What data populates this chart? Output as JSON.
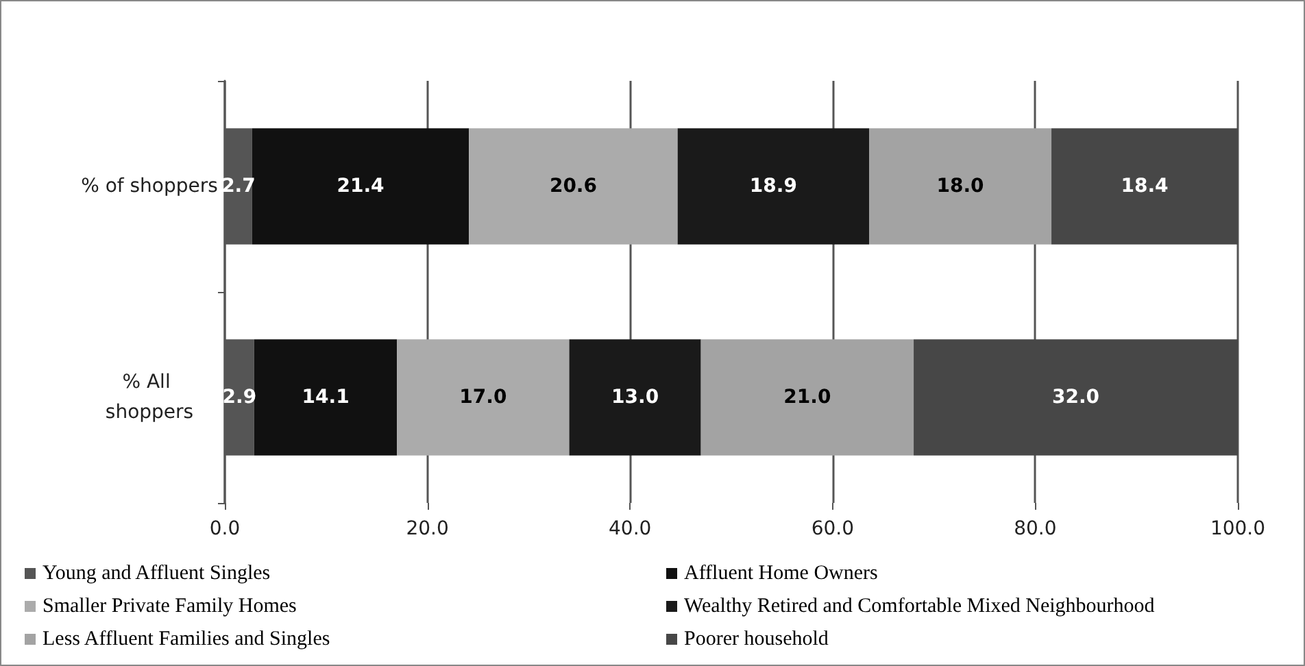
{
  "chart_data": {
    "type": "bar",
    "orientation": "horizontal",
    "stacked": true,
    "categories": [
      "% of shoppers",
      "% All shoppers"
    ],
    "series": [
      {
        "name": "Young and Affluent Singles",
        "color": "#555555",
        "values": [
          2.7,
          2.9
        ],
        "value_labels": [
          "2.7",
          "2.9"
        ]
      },
      {
        "name": "Affluent Home Owners",
        "color": "#111111",
        "values": [
          21.4,
          14.1
        ],
        "value_labels": [
          "21.4",
          "14.1"
        ]
      },
      {
        "name": "Smaller Private Family Homes",
        "color": "#ababab",
        "values": [
          20.6,
          17.0
        ],
        "value_labels": [
          "20.6",
          "17.0"
        ]
      },
      {
        "name": "Wealthy Retired and Comfortable Mixed Neighbourhood",
        "color": "#1a1a1a",
        "values": [
          18.9,
          13.0
        ],
        "value_labels": [
          "18.9",
          "13.0"
        ]
      },
      {
        "name": "Less Affluent Families and Singles",
        "color": "#a3a3a3",
        "values": [
          18.0,
          21.0
        ],
        "value_labels": [
          "18.0",
          "21.0"
        ]
      },
      {
        "name": "Poorer household",
        "color": "#474747",
        "values": [
          18.4,
          32.0
        ],
        "value_labels": [
          "18.4",
          "32.0"
        ]
      }
    ],
    "xlim": [
      0,
      100
    ],
    "xticks": [
      {
        "value": 0,
        "label": "0.0"
      },
      {
        "value": 20,
        "label": "20.0"
      },
      {
        "value": 40,
        "label": "40.0"
      },
      {
        "value": 60,
        "label": "60.0"
      },
      {
        "value": 80,
        "label": "80.0"
      },
      {
        "value": 100,
        "label": "100.0"
      }
    ],
    "grid": "x",
    "legend": "bottom"
  }
}
